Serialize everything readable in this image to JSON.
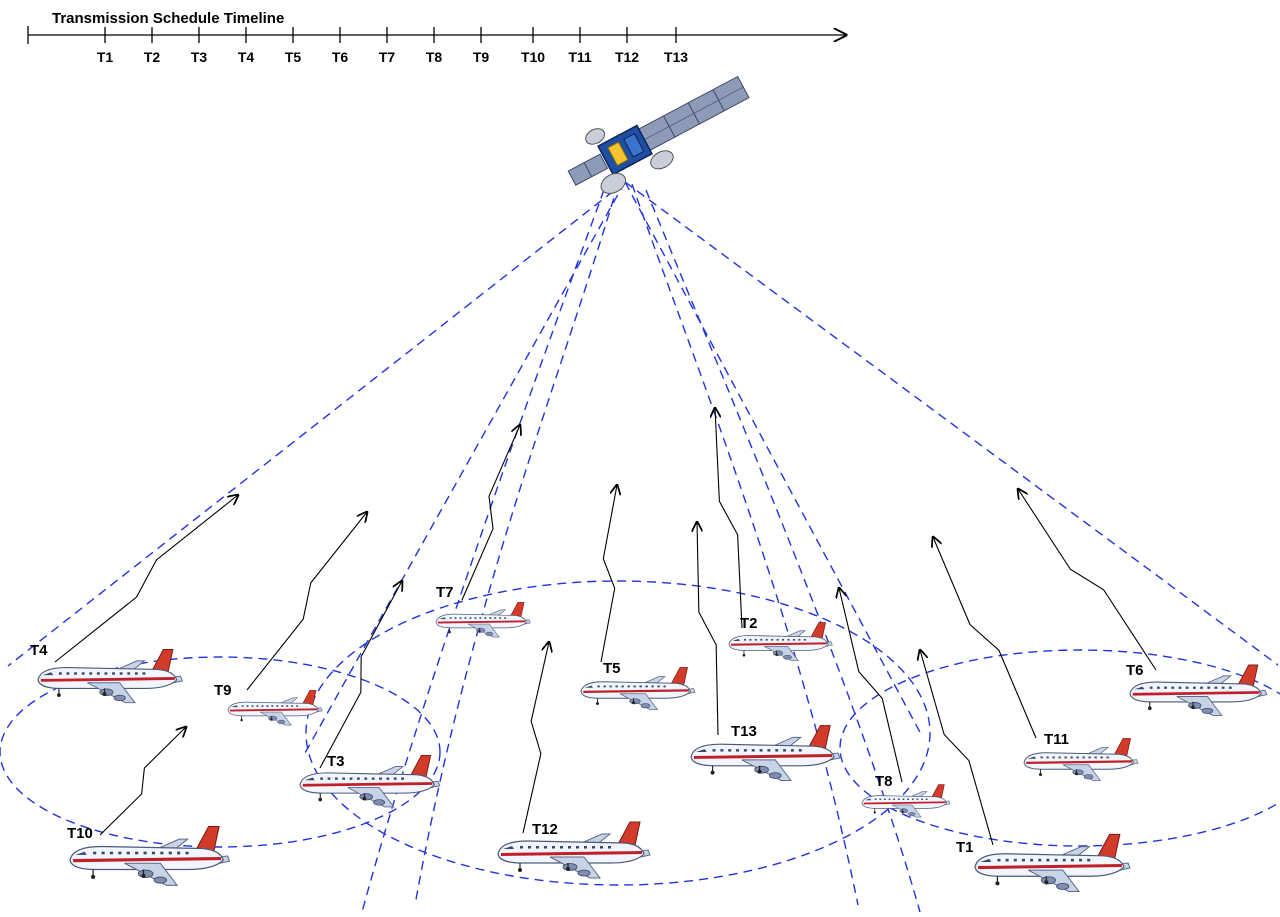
{
  "timeline": {
    "title": "Transmission Schedule Timeline",
    "ticks": [
      "T1",
      "T2",
      "T3",
      "T4",
      "T5",
      "T6",
      "T7",
      "T8",
      "T9",
      "T10",
      "T11",
      "T12",
      "T13"
    ]
  },
  "aircraft": [
    {
      "label": "T4"
    },
    {
      "label": "T9"
    },
    {
      "label": "T10"
    },
    {
      "label": "T3"
    },
    {
      "label": "T7"
    },
    {
      "label": "T5"
    },
    {
      "label": "T12"
    },
    {
      "label": "T2"
    },
    {
      "label": "T13"
    },
    {
      "label": "T8"
    },
    {
      "label": "T1"
    },
    {
      "label": "T11"
    },
    {
      "label": "T6"
    }
  ],
  "colors": {
    "beam": "#2233dd",
    "link": "#000000",
    "fuselage": "#f2f5fb",
    "stripe": "#c0202a",
    "tail": "#d23a2a",
    "wing": "#c8d3e6"
  },
  "icons": {
    "satellite": "satellite-icon",
    "aircraft": "airplane-icon"
  }
}
